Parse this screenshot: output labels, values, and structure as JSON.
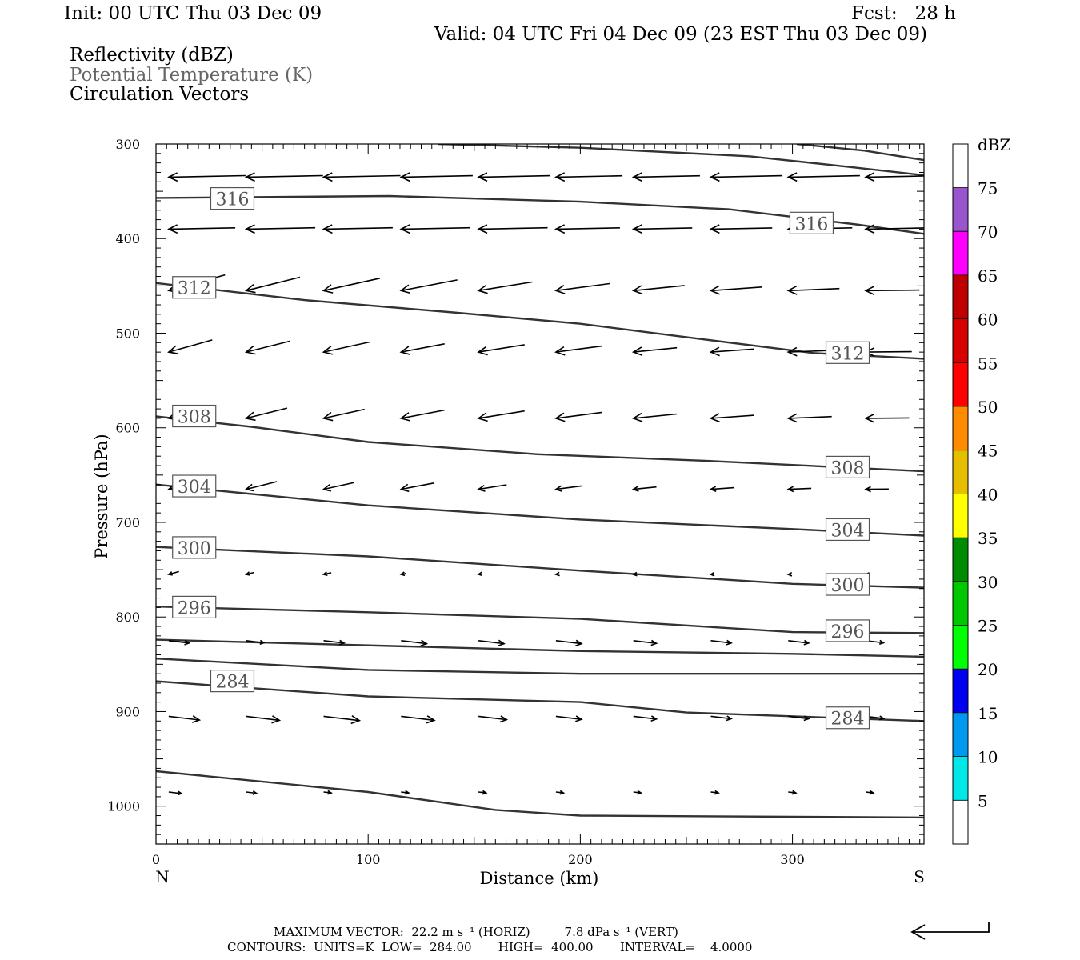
{
  "header": {
    "init": "Init: 00 UTC Thu 03 Dec 09",
    "fcst": "Fcst:   28 h",
    "valid": "Valid: 04 UTC Fri 04 Dec 09 (23 EST Thu 03 Dec 09)",
    "field1": "Reflectivity (dBZ)",
    "field2": "Potential Temperature (K)",
    "field3": "Circulation Vectors"
  },
  "footer": {
    "line1": "MAXIMUM VECTOR:  22.2 m s⁻¹ (HORIZ)         7.8 dPa s⁻¹ (VERT)",
    "line2": "CONTOURS:  UNITS=K  LOW=  284.00       HIGH=  400.00       INTERVAL=    4.0000"
  },
  "colors": {
    "contour": "#333333",
    "contour_label": "#555555",
    "colorbar": [
      "#ffffff",
      "#00e8e8",
      "#0099f0",
      "#0000f0",
      "#00ff00",
      "#00c800",
      "#008c00",
      "#ffff00",
      "#e6be00",
      "#ff8c00",
      "#ff0000",
      "#d70000",
      "#be0000",
      "#ff00ff",
      "#9955cc",
      "#ffffff"
    ]
  },
  "chart_data": {
    "type": "cross-section",
    "xlabel": "Distance (km)",
    "ylabel": "Pressure (hPa)",
    "xlim": [
      0,
      362
    ],
    "ylim": [
      1040,
      300
    ],
    "xticks": [
      0,
      100,
      200,
      300
    ],
    "yticks": [
      300,
      400,
      500,
      600,
      700,
      800,
      900,
      1000
    ],
    "x_end_labels": {
      "left": "N",
      "right": "S"
    },
    "colorbar": {
      "title": "dBZ",
      "labels": [
        "5",
        "10",
        "15",
        "20",
        "25",
        "30",
        "35",
        "40",
        "45",
        "50",
        "55",
        "60",
        "65",
        "70",
        "75"
      ]
    },
    "contours": [
      {
        "label": "",
        "points": [
          [
            133,
            300
          ],
          [
            200,
            304
          ],
          [
            280,
            313
          ],
          [
            326,
            324
          ],
          [
            362,
            333
          ]
        ]
      },
      {
        "label": "",
        "points": [
          [
            302,
            300
          ],
          [
            334,
            307
          ],
          [
            362,
            317
          ]
        ]
      },
      {
        "label": "316",
        "label_at": [
          36,
          358
        ],
        "points": [
          [
            0,
            357
          ],
          [
            110,
            355
          ],
          [
            200,
            361
          ],
          [
            270,
            369
          ],
          [
            330,
            385
          ],
          [
            362,
            395
          ]
        ]
      },
      {
        "label": "316",
        "label_at": [
          309,
          384
        ],
        "points": []
      },
      {
        "label": "312",
        "label_at": [
          18,
          452
        ],
        "points": [
          [
            0,
            447
          ],
          [
            70,
            465
          ],
          [
            140,
            478
          ],
          [
            200,
            490
          ],
          [
            260,
            507
          ],
          [
            310,
            521
          ],
          [
            362,
            527
          ]
        ]
      },
      {
        "label": "312",
        "label_at": [
          326,
          521
        ],
        "points": []
      },
      {
        "label": "308",
        "label_at": [
          18,
          588
        ],
        "points": [
          [
            0,
            588
          ],
          [
            45,
            599
          ],
          [
            100,
            615
          ],
          [
            180,
            628
          ],
          [
            260,
            635
          ],
          [
            362,
            646
          ]
        ]
      },
      {
        "label": "308",
        "label_at": [
          326,
          642
        ],
        "points": []
      },
      {
        "label": "304",
        "label_at": [
          18,
          662
        ],
        "points": [
          [
            0,
            660
          ],
          [
            100,
            682
          ],
          [
            200,
            697
          ],
          [
            300,
            707
          ],
          [
            362,
            714
          ]
        ]
      },
      {
        "label": "304",
        "label_at": [
          326,
          708
        ],
        "points": []
      },
      {
        "label": "300",
        "label_at": [
          18,
          727
        ],
        "points": [
          [
            0,
            726
          ],
          [
            100,
            736
          ],
          [
            200,
            751
          ],
          [
            300,
            765
          ],
          [
            362,
            769
          ]
        ]
      },
      {
        "label": "300",
        "label_at": [
          326,
          766
        ],
        "points": []
      },
      {
        "label": "296",
        "label_at": [
          18,
          790
        ],
        "points": [
          [
            0,
            789
          ],
          [
            100,
            795
          ],
          [
            200,
            802
          ],
          [
            300,
            816
          ],
          [
            362,
            817
          ]
        ]
      },
      {
        "label": "296",
        "label_at": [
          326,
          815
        ],
        "points": []
      },
      {
        "label": "",
        "points": [
          [
            0,
            824
          ],
          [
            200,
            836
          ],
          [
            300,
            839
          ],
          [
            362,
            842
          ]
        ]
      },
      {
        "label": "",
        "points": [
          [
            0,
            844
          ],
          [
            100,
            856
          ],
          [
            200,
            860
          ],
          [
            362,
            860
          ]
        ]
      },
      {
        "label": "284",
        "label_at": [
          36,
          868
        ],
        "points": [
          [
            0,
            868
          ],
          [
            100,
            884
          ],
          [
            200,
            890
          ],
          [
            250,
            901
          ],
          [
            362,
            910
          ]
        ]
      },
      {
        "label": "284",
        "label_at": [
          326,
          907
        ],
        "points": []
      },
      {
        "label": "",
        "points": [
          [
            0,
            963
          ],
          [
            100,
            985
          ],
          [
            160,
            1004
          ],
          [
            200,
            1010
          ],
          [
            362,
            1012
          ]
        ]
      }
    ],
    "vector_rows": [
      {
        "p": 335,
        "dx": [
          -30,
          -30,
          -30,
          -28,
          -28,
          -26,
          -26,
          -28,
          -28,
          -30
        ]
      },
      {
        "p": 390,
        "dx": [
          -26,
          -27,
          -27,
          -27,
          -27,
          -25,
          -23,
          -24,
          -25,
          -25
        ]
      },
      {
        "p": 455,
        "dx": [
          -22,
          -21,
          -22,
          -22,
          -21,
          -21,
          -20,
          -20,
          -20,
          -21
        ]
      },
      {
        "p": 520,
        "dx": [
          -17,
          -17,
          -18,
          -17,
          -18,
          -18,
          -17,
          -17,
          -17,
          -18
        ]
      },
      {
        "p": 590,
        "dx": [
          -16,
          -16,
          -16,
          -17,
          -18,
          -18,
          -17,
          -17,
          -17,
          -17
        ]
      },
      {
        "p": 665,
        "dx": [
          -11,
          -12,
          -12,
          -13,
          -11,
          -10,
          -9,
          -9,
          -9,
          -9
        ]
      },
      {
        "p": 755,
        "dx": [
          -4,
          -3,
          -3,
          -2,
          -1,
          -1,
          -1,
          -1,
          -1,
          -1
        ]
      },
      {
        "p": 825,
        "dx": [
          8,
          7,
          8,
          10,
          10,
          10,
          9,
          8,
          8,
          7
        ]
      },
      {
        "p": 905,
        "dx": [
          12,
          13,
          14,
          13,
          11,
          10,
          9,
          8,
          8,
          7
        ]
      },
      {
        "p": 985,
        "dx": [
          5,
          4,
          3,
          3,
          3,
          3,
          3,
          3,
          3,
          3
        ]
      }
    ]
  }
}
